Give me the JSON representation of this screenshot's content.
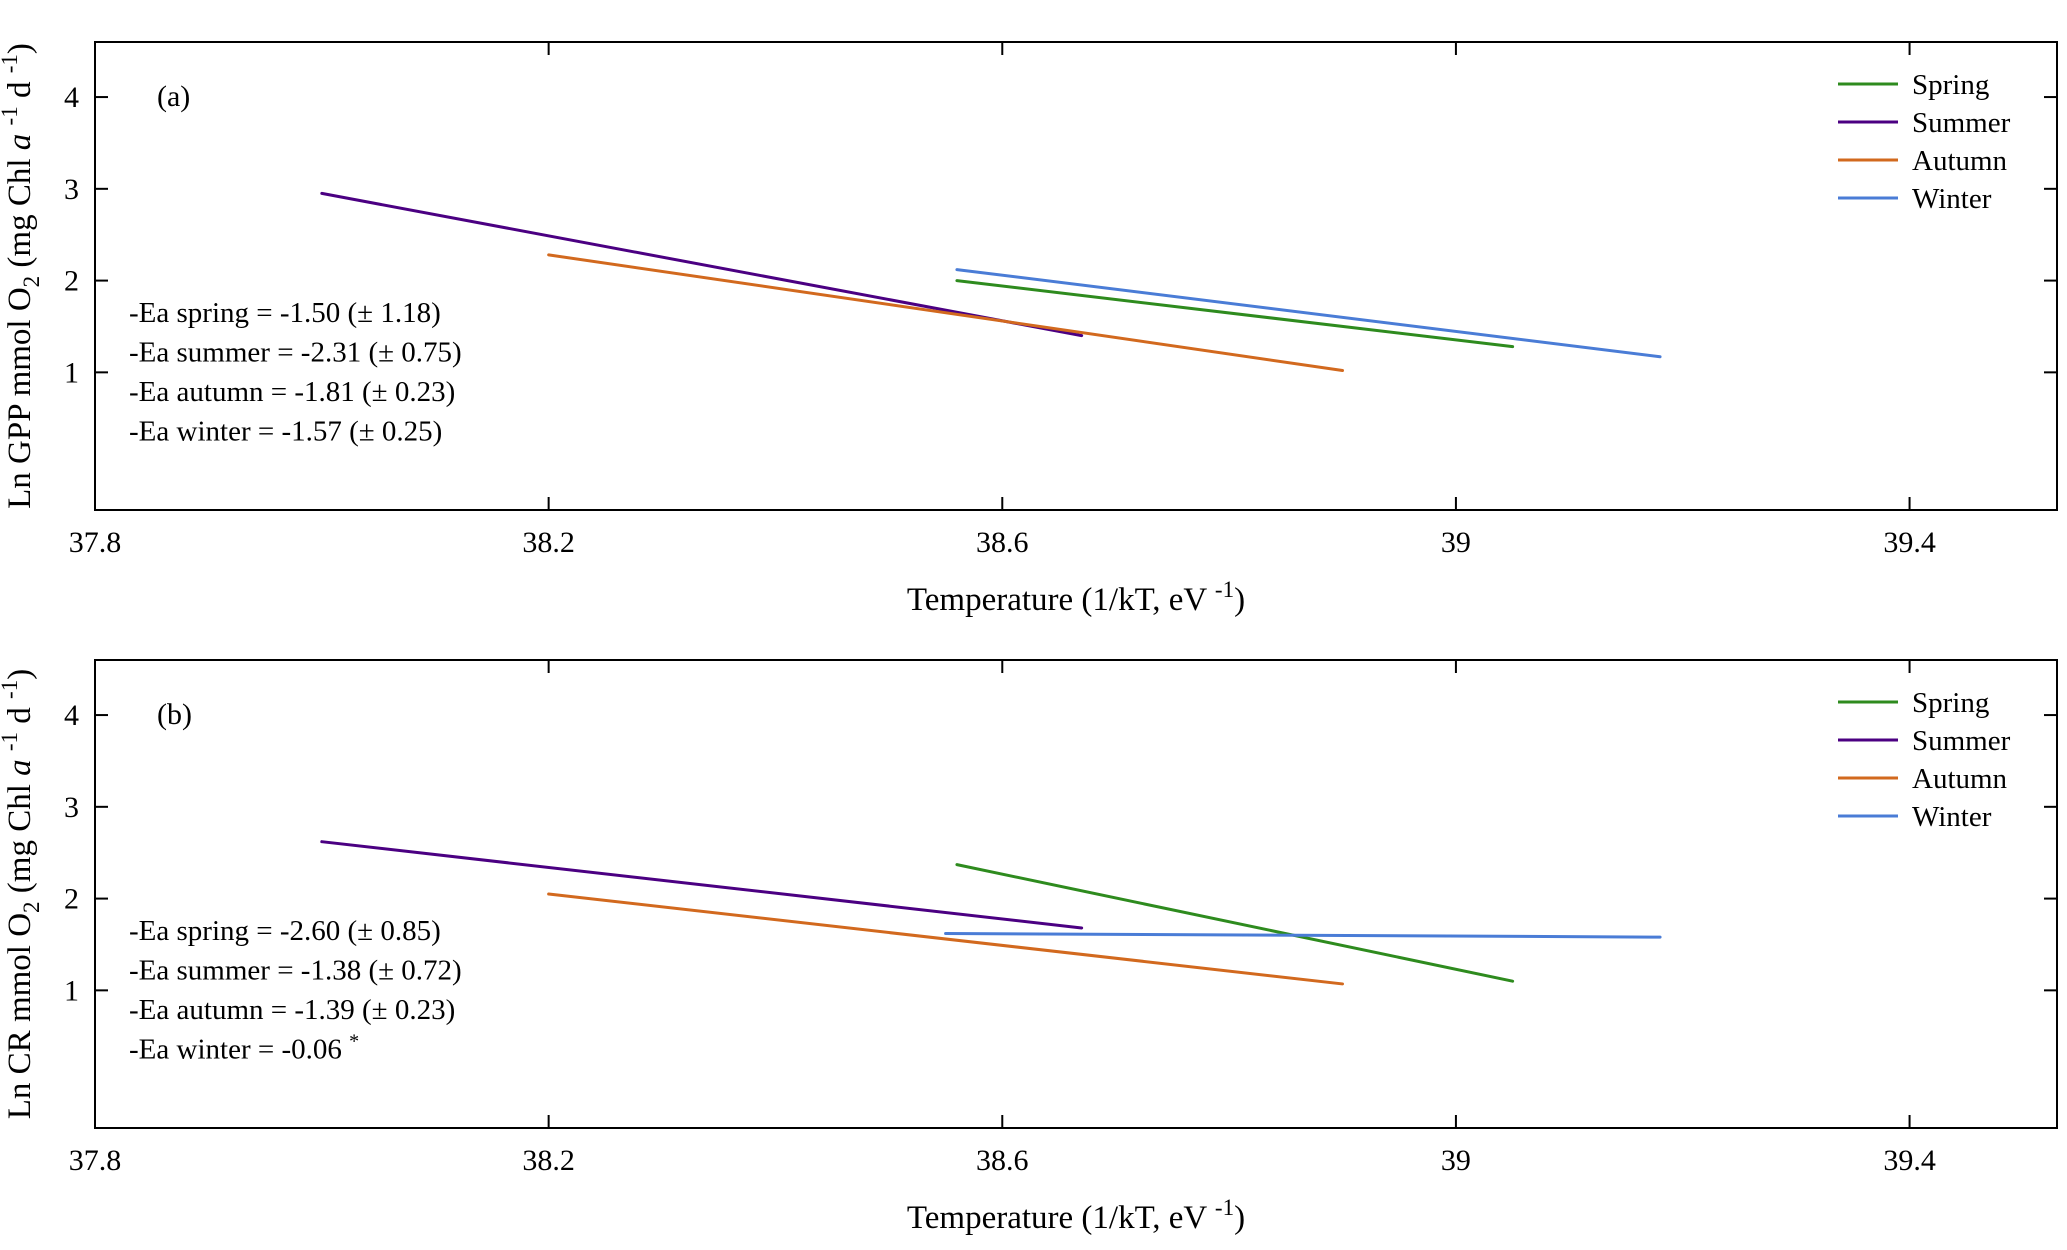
{
  "figure": {
    "background": "#ffffff",
    "axis_color": "#000000"
  },
  "chart_data": [
    {
      "type": "line",
      "panel_label": "(a)",
      "xlabel": "Temperature (1/kT, eV -1)",
      "xlabel_parts": [
        {
          "t": "Temperature (1/kT, eV "
        },
        {
          "t": "-1",
          "style": "sup"
        },
        {
          "t": ")"
        }
      ],
      "ylabel": "Ln GPP mmol O2 (mg Chl a -1 d -1)",
      "ylabel_parts": [
        {
          "t": "Ln GPP mmol O"
        },
        {
          "t": "2",
          "style": "sub"
        },
        {
          "t": " (mg Chl "
        },
        {
          "t": "a",
          "style": "italic"
        },
        {
          "t": " "
        },
        {
          "t": "-1",
          "style": "sup"
        },
        {
          "t": " d "
        },
        {
          "t": "-1",
          "style": "sup"
        },
        {
          "t": ")"
        }
      ],
      "xlim": [
        37.8,
        39.53
      ],
      "ylim": [
        -0.5,
        4.6
      ],
      "xticks": [
        37.8,
        38.2,
        38.6,
        39,
        39.4
      ],
      "xtick_labels": [
        "37.8",
        "38.2",
        "38.6",
        "39",
        "39.4"
      ],
      "yticks": [
        1,
        2,
        3,
        4
      ],
      "ytick_labels": [
        "1",
        "2",
        "3",
        "4"
      ],
      "grid": false,
      "legend_position": "top-right",
      "series": [
        {
          "name": "Spring",
          "color": "#2E8B1E",
          "x": [
            38.56,
            39.05
          ],
          "y": [
            2.0,
            1.28
          ]
        },
        {
          "name": "Summer",
          "color": "#4B0082",
          "x": [
            38.0,
            38.67
          ],
          "y": [
            2.95,
            1.4
          ]
        },
        {
          "name": "Autumn",
          "color": "#D2691E",
          "x": [
            38.2,
            38.9
          ],
          "y": [
            2.28,
            1.02
          ]
        },
        {
          "name": "Winter",
          "color": "#4A7CD6",
          "x": [
            38.56,
            39.18
          ],
          "y": [
            2.12,
            1.17
          ]
        }
      ],
      "annotations": [
        {
          "text": "-Ea spring = -1.50 (± 1.18)",
          "parts": [
            {
              "t": "-Ea spring = -1.50 (± 1.18)"
            }
          ],
          "x": 37.83,
          "y": 1.55
        },
        {
          "text": "-Ea summer = -2.31 (± 0.75)",
          "parts": [
            {
              "t": "-Ea summer = -2.31 (± 0.75)"
            }
          ],
          "x": 37.83,
          "y": 1.12
        },
        {
          "text": "-Ea autumn = -1.81 (± 0.23)",
          "parts": [
            {
              "t": "-Ea autumn = -1.81 (± 0.23)"
            }
          ],
          "x": 37.83,
          "y": 0.69
        },
        {
          "text": "-Ea winter = -1.57 (± 0.25)",
          "parts": [
            {
              "t": "-Ea winter = -1.57 (± 0.25)"
            }
          ],
          "x": 37.83,
          "y": 0.26
        }
      ]
    },
    {
      "type": "line",
      "panel_label": "(b)",
      "xlabel": "Temperature (1/kT, eV -1)",
      "xlabel_parts": [
        {
          "t": "Temperature (1/kT, eV "
        },
        {
          "t": "-1",
          "style": "sup"
        },
        {
          "t": ")"
        }
      ],
      "ylabel": "Ln CR mmol O2 (mg Chl a -1 d -1)",
      "ylabel_parts": [
        {
          "t": "Ln CR mmol O"
        },
        {
          "t": "2",
          "style": "sub"
        },
        {
          "t": " (mg Chl "
        },
        {
          "t": "a",
          "style": "italic"
        },
        {
          "t": " "
        },
        {
          "t": "-1",
          "style": "sup"
        },
        {
          "t": " d "
        },
        {
          "t": "-1",
          "style": "sup"
        },
        {
          "t": ")"
        }
      ],
      "xlim": [
        37.8,
        39.53
      ],
      "ylim": [
        -0.5,
        4.6
      ],
      "xticks": [
        37.8,
        38.2,
        38.6,
        39,
        39.4
      ],
      "xtick_labels": [
        "37.8",
        "38.2",
        "38.6",
        "39",
        "39.4"
      ],
      "yticks": [
        1,
        2,
        3,
        4
      ],
      "ytick_labels": [
        "1",
        "2",
        "3",
        "4"
      ],
      "grid": false,
      "legend_position": "top-right",
      "series": [
        {
          "name": "Spring",
          "color": "#2E8B1E",
          "x": [
            38.56,
            39.05
          ],
          "y": [
            2.37,
            1.1
          ]
        },
        {
          "name": "Summer",
          "color": "#4B0082",
          "x": [
            38.0,
            38.67
          ],
          "y": [
            2.62,
            1.68
          ]
        },
        {
          "name": "Autumn",
          "color": "#D2691E",
          "x": [
            38.2,
            38.9
          ],
          "y": [
            2.05,
            1.07
          ]
        },
        {
          "name": "Winter",
          "color": "#4A7CD6",
          "x": [
            38.55,
            39.18
          ],
          "y": [
            1.62,
            1.58
          ]
        }
      ],
      "annotations": [
        {
          "text": "-Ea spring = -2.60 (± 0.85)",
          "parts": [
            {
              "t": "-Ea spring = -2.60 (± 0.85)"
            }
          ],
          "x": 37.83,
          "y": 1.55
        },
        {
          "text": "-Ea summer = -1.38 (± 0.72)",
          "parts": [
            {
              "t": "-Ea summer = -1.38 (± 0.72)"
            }
          ],
          "x": 37.83,
          "y": 1.12
        },
        {
          "text": "-Ea autumn = -1.39 (± 0.23)",
          "parts": [
            {
              "t": "-Ea autumn = -1.39 (± 0.23)"
            }
          ],
          "x": 37.83,
          "y": 0.69
        },
        {
          "text": "-Ea winter = -0.06 *",
          "parts": [
            {
              "t": "-Ea winter = -0.06 "
            },
            {
              "t": "*",
              "style": "sup"
            }
          ],
          "x": 37.83,
          "y": 0.26
        }
      ]
    }
  ]
}
